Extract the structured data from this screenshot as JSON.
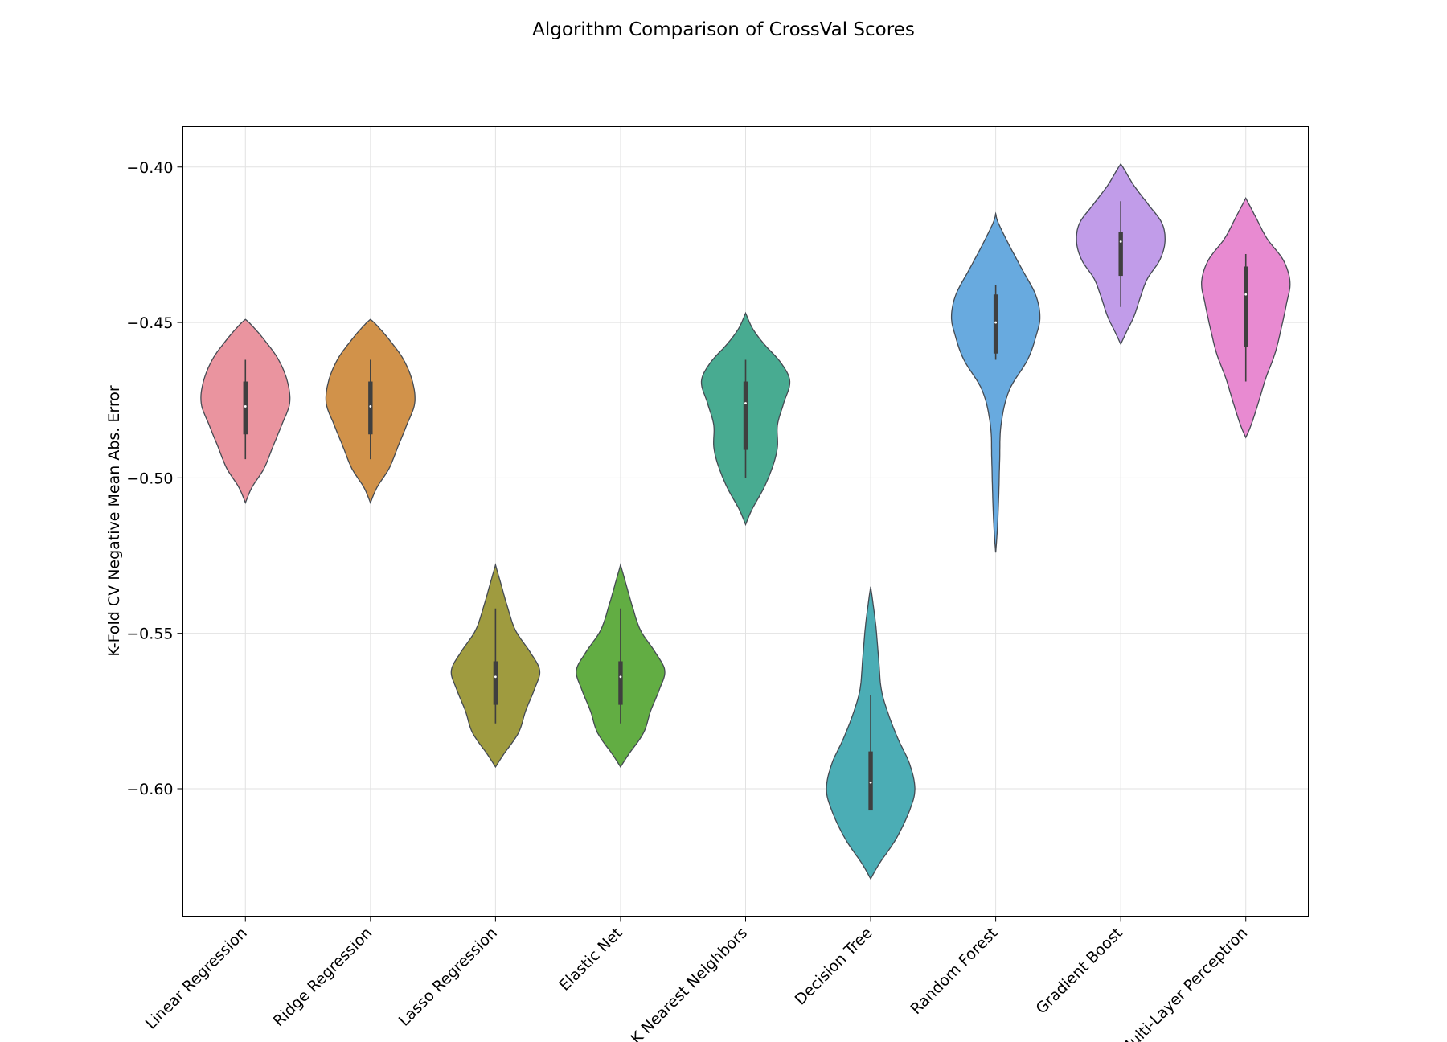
{
  "chart_data": {
    "type": "violin",
    "title": "Algorithm Comparison of CrossVal Scores",
    "ylabel": "K-Fold CV Negative Mean Abs. Error",
    "xlabel": "",
    "ylim": [
      -0.641,
      -0.387
    ],
    "yticks": [
      -0.4,
      -0.45,
      -0.5,
      -0.55,
      -0.6
    ],
    "ytick_labels": [
      "−0.40",
      "−0.45",
      "−0.50",
      "−0.55",
      "−0.60"
    ],
    "grid": true,
    "categories": [
      "Linear Regression",
      "Ridge Regression",
      "Lasso Regression",
      "Elastic Net",
      "K Nearest Neighbors",
      "Decision Tree",
      "Random Forest",
      "Gradient Boost",
      "Multi-Layer Perceptron"
    ],
    "colors": [
      "#ea949f",
      "#d1924a",
      "#9f9b3f",
      "#62ad43",
      "#48ab91",
      "#4badb5",
      "#68aadf",
      "#c19ce9",
      "#e88ad1"
    ],
    "violins": [
      {
        "name": "Linear Regression",
        "min": -0.508,
        "max": -0.449,
        "whisker_low": -0.494,
        "whisker_high": -0.462,
        "q1": -0.486,
        "q3": -0.469,
        "median": -0.477,
        "profile": [
          [
            -0.508,
            0
          ],
          [
            -0.503,
            0.15
          ],
          [
            -0.497,
            0.42
          ],
          [
            -0.49,
            0.62
          ],
          [
            -0.483,
            0.82
          ],
          [
            -0.476,
            1.0
          ],
          [
            -0.469,
            0.95
          ],
          [
            -0.462,
            0.75
          ],
          [
            -0.456,
            0.45
          ],
          [
            -0.451,
            0.15
          ],
          [
            -0.449,
            0
          ]
        ]
      },
      {
        "name": "Ridge Regression",
        "min": -0.508,
        "max": -0.449,
        "whisker_low": -0.494,
        "whisker_high": -0.462,
        "q1": -0.486,
        "q3": -0.469,
        "median": -0.477,
        "profile": [
          [
            -0.508,
            0
          ],
          [
            -0.503,
            0.15
          ],
          [
            -0.497,
            0.42
          ],
          [
            -0.49,
            0.62
          ],
          [
            -0.483,
            0.82
          ],
          [
            -0.476,
            1.0
          ],
          [
            -0.469,
            0.95
          ],
          [
            -0.462,
            0.75
          ],
          [
            -0.456,
            0.45
          ],
          [
            -0.451,
            0.15
          ],
          [
            -0.449,
            0
          ]
        ]
      },
      {
        "name": "Lasso Regression",
        "min": -0.593,
        "max": -0.528,
        "whisker_low": -0.579,
        "whisker_high": -0.542,
        "q1": -0.573,
        "q3": -0.559,
        "median": -0.564,
        "profile": [
          [
            -0.593,
            0
          ],
          [
            -0.589,
            0.18
          ],
          [
            -0.582,
            0.52
          ],
          [
            -0.575,
            0.68
          ],
          [
            -0.568,
            0.88
          ],
          [
            -0.562,
            1.0
          ],
          [
            -0.556,
            0.78
          ],
          [
            -0.549,
            0.45
          ],
          [
            -0.541,
            0.26
          ],
          [
            -0.534,
            0.12
          ],
          [
            -0.528,
            0
          ]
        ]
      },
      {
        "name": "Elastic Net",
        "min": -0.593,
        "max": -0.528,
        "whisker_low": -0.579,
        "whisker_high": -0.542,
        "q1": -0.573,
        "q3": -0.559,
        "median": -0.564,
        "profile": [
          [
            -0.593,
            0
          ],
          [
            -0.589,
            0.18
          ],
          [
            -0.582,
            0.52
          ],
          [
            -0.575,
            0.68
          ],
          [
            -0.568,
            0.88
          ],
          [
            -0.562,
            1.0
          ],
          [
            -0.556,
            0.78
          ],
          [
            -0.549,
            0.45
          ],
          [
            -0.541,
            0.26
          ],
          [
            -0.534,
            0.12
          ],
          [
            -0.528,
            0
          ]
        ]
      },
      {
        "name": "K Nearest Neighbors",
        "min": -0.515,
        "max": -0.447,
        "whisker_low": -0.5,
        "whisker_high": -0.462,
        "q1": -0.491,
        "q3": -0.469,
        "median": -0.476,
        "profile": [
          [
            -0.515,
            0
          ],
          [
            -0.51,
            0.15
          ],
          [
            -0.503,
            0.42
          ],
          [
            -0.496,
            0.62
          ],
          [
            -0.49,
            0.72
          ],
          [
            -0.483,
            0.72
          ],
          [
            -0.476,
            0.86
          ],
          [
            -0.469,
            1.0
          ],
          [
            -0.463,
            0.8
          ],
          [
            -0.457,
            0.42
          ],
          [
            -0.452,
            0.16
          ],
          [
            -0.447,
            0
          ]
        ]
      },
      {
        "name": "Decision Tree",
        "min": -0.629,
        "max": -0.535,
        "whisker_low": -0.607,
        "whisker_high": -0.57,
        "q1": -0.607,
        "q3": -0.588,
        "median": -0.598,
        "profile": [
          [
            -0.629,
            0
          ],
          [
            -0.624,
            0.2
          ],
          [
            -0.616,
            0.58
          ],
          [
            -0.607,
            0.88
          ],
          [
            -0.6,
            1.0
          ],
          [
            -0.592,
            0.88
          ],
          [
            -0.584,
            0.62
          ],
          [
            -0.576,
            0.4
          ],
          [
            -0.568,
            0.24
          ],
          [
            -0.558,
            0.18
          ],
          [
            -0.548,
            0.12
          ],
          [
            -0.54,
            0.05
          ],
          [
            -0.535,
            0
          ]
        ]
      },
      {
        "name": "Random Forest",
        "min": -0.524,
        "max": -0.415,
        "whisker_low": -0.462,
        "whisker_high": -0.438,
        "q1": -0.46,
        "q3": -0.441,
        "median": -0.45,
        "profile": [
          [
            -0.524,
            0
          ],
          [
            -0.516,
            0.04
          ],
          [
            -0.505,
            0.07
          ],
          [
            -0.494,
            0.09
          ],
          [
            -0.483,
            0.12
          ],
          [
            -0.472,
            0.3
          ],
          [
            -0.462,
            0.72
          ],
          [
            -0.454,
            0.92
          ],
          [
            -0.448,
            1.0
          ],
          [
            -0.441,
            0.9
          ],
          [
            -0.433,
            0.6
          ],
          [
            -0.425,
            0.3
          ],
          [
            -0.418,
            0.06
          ],
          [
            -0.415,
            0
          ]
        ]
      },
      {
        "name": "Gradient Boost",
        "min": -0.457,
        "max": -0.399,
        "whisker_low": -0.445,
        "whisker_high": -0.411,
        "q1": -0.435,
        "q3": -0.421,
        "median": -0.424,
        "profile": [
          [
            -0.457,
            0
          ],
          [
            -0.453,
            0.13
          ],
          [
            -0.448,
            0.3
          ],
          [
            -0.442,
            0.44
          ],
          [
            -0.436,
            0.6
          ],
          [
            -0.43,
            0.88
          ],
          [
            -0.424,
            1.0
          ],
          [
            -0.418,
            0.93
          ],
          [
            -0.412,
            0.62
          ],
          [
            -0.406,
            0.3
          ],
          [
            -0.401,
            0.09
          ],
          [
            -0.399,
            0
          ]
        ]
      },
      {
        "name": "Multi-Layer Perceptron",
        "min": -0.487,
        "max": -0.41,
        "whisker_low": -0.469,
        "whisker_high": -0.428,
        "q1": -0.458,
        "q3": -0.432,
        "median": -0.441,
        "profile": [
          [
            -0.487,
            0
          ],
          [
            -0.483,
            0.12
          ],
          [
            -0.476,
            0.28
          ],
          [
            -0.468,
            0.45
          ],
          [
            -0.46,
            0.66
          ],
          [
            -0.452,
            0.8
          ],
          [
            -0.444,
            0.92
          ],
          [
            -0.437,
            1.0
          ],
          [
            -0.43,
            0.85
          ],
          [
            -0.423,
            0.48
          ],
          [
            -0.416,
            0.22
          ],
          [
            -0.41,
            0
          ]
        ]
      }
    ]
  }
}
